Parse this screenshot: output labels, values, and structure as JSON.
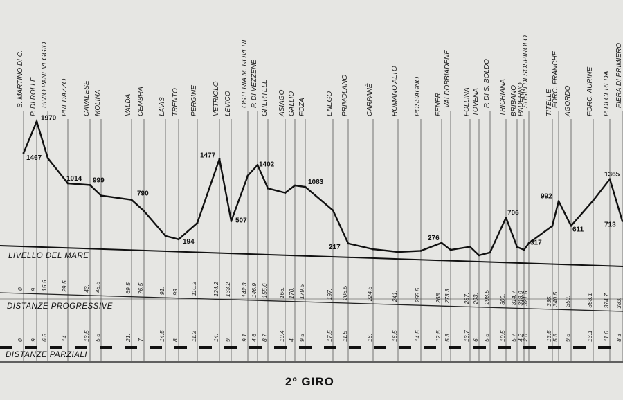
{
  "chart_data": {
    "type": "line",
    "title": "2º GIRO",
    "ylim": [
      0,
      2100
    ],
    "row_labels": {
      "sea_level": "LIVELLO DEL MARE",
      "progressive": "DISTANZE PROGRESSIVE",
      "partial": "DISTANZE PARZIALI"
    },
    "locations": [
      {
        "name": "S. MARTINO DI C.",
        "prog": "0",
        "part": "0"
      },
      {
        "name": "P. DI ROLLE",
        "prog": "9",
        "part": "9"
      },
      {
        "name": "BIVIO PANEVEGGIO",
        "prog": "15.5",
        "part": "6.5"
      },
      {
        "name": "PREDAZZO",
        "prog": "29.5",
        "part": "14."
      },
      {
        "name": "CAVALESE",
        "prog": "43.",
        "part": "13.5"
      },
      {
        "name": "MOLINA",
        "prog": "48.5",
        "part": "5.5"
      },
      {
        "name": "VALDA",
        "prog": "69.5",
        "part": "21."
      },
      {
        "name": "CEMBRA",
        "prog": "76.5",
        "part": "7."
      },
      {
        "name": "LAVIS",
        "prog": "91.",
        "part": "14.5"
      },
      {
        "name": "TRENTO",
        "prog": "99.",
        "part": "8."
      },
      {
        "name": "PERGINE",
        "prog": "110.2",
        "part": "11.2"
      },
      {
        "name": "VETRIOLO",
        "prog": "124.2",
        "part": "14."
      },
      {
        "name": "LEVICO",
        "prog": "133.2",
        "part": "9."
      },
      {
        "name": "OSTERIA M. ROVERE",
        "prog": "142.3",
        "part": "9.1"
      },
      {
        "name": "P. DI VEZZENE",
        "prog": "146.9",
        "part": "4.6"
      },
      {
        "name": "GHERTELE",
        "prog": "155.6",
        "part": "8.7"
      },
      {
        "name": "ASIAGO",
        "prog": "166.",
        "part": "10.4"
      },
      {
        "name": "GALLIO",
        "prog": "170.",
        "part": "4."
      },
      {
        "name": "FOZA",
        "prog": "179.5",
        "part": "9.5"
      },
      {
        "name": "ENEGO",
        "prog": "197.",
        "part": "17.5"
      },
      {
        "name": "PRIMOLANO",
        "prog": "208.5",
        "part": "11.5"
      },
      {
        "name": "CARPANÈ",
        "prog": "224.5",
        "part": "16."
      },
      {
        "name": "ROMANO ALTO",
        "prog": "241.",
        "part": "16.5"
      },
      {
        "name": "POSSAGNO",
        "prog": "255.5",
        "part": "14.5"
      },
      {
        "name": "FENER",
        "prog": "268.",
        "part": "12.5"
      },
      {
        "name": "VALDOBBIADENE",
        "prog": "273.3",
        "part": "5.3"
      },
      {
        "name": "FOLLINA",
        "prog": "287.",
        "part": "13.7"
      },
      {
        "name": "TOVENA",
        "prog": "293.",
        "part": "6."
      },
      {
        "name": "P. DI S. BOLDO",
        "prog": "298.5",
        "part": "5.5"
      },
      {
        "name": "TRICHIANA",
        "prog": "309.",
        "part": "10.5"
      },
      {
        "name": "BRIBANO",
        "prog": "314.7",
        "part": "5.7"
      },
      {
        "name": "PADERNO",
        "prog": "318.9",
        "part": "4.2"
      },
      {
        "name": "SUSIN DI SOSPIROLO",
        "prog": "321.5",
        "part": "2.6"
      },
      {
        "name": "TITELLE",
        "prog": "335.",
        "part": "13.5"
      },
      {
        "name": "FORC. FRANCHE",
        "prog": "340.5",
        "part": "5.5"
      },
      {
        "name": "AGORDO",
        "prog": "350.",
        "part": "9.5"
      },
      {
        "name": "FORC. AURINE",
        "prog": "363.1",
        "part": "13.1"
      },
      {
        "name": "P. DI CEREDA",
        "prog": "374.7",
        "part": "11.6"
      },
      {
        "name": "FIERA DI PRIMIERO",
        "prog": "383.",
        "part": "8.3"
      }
    ],
    "altitudes": [
      1467,
      1970,
      1400,
      1014,
      999,
      840,
      790,
      620,
      240,
      194,
      460,
      1477,
      507,
      1230,
      1402,
      1040,
      980,
      1100,
      1083,
      730,
      217,
      140,
      110,
      140,
      276,
      170,
      230,
      100,
      150,
      706,
      250,
      210,
      317,
      600,
      992,
      611,
      1020,
      1365,
      713
    ],
    "elevation_labels": [
      {
        "index": 0,
        "text": "1467"
      },
      {
        "index": 1,
        "text": "1970"
      },
      {
        "index": 3,
        "text": "1014"
      },
      {
        "index": 4,
        "text": "999"
      },
      {
        "index": 6,
        "text": "790"
      },
      {
        "index": 9,
        "text": "194"
      },
      {
        "index": 11,
        "text": "1477"
      },
      {
        "index": 12,
        "text": "507"
      },
      {
        "index": 14,
        "text": "1402"
      },
      {
        "index": 18,
        "text": "1083"
      },
      {
        "index": 20,
        "text": "217"
      },
      {
        "index": 24,
        "text": "276"
      },
      {
        "index": 29,
        "text": "706"
      },
      {
        "index": 32,
        "text": "317"
      },
      {
        "index": 34,
        "text": "992"
      },
      {
        "index": 35,
        "text": "611"
      },
      {
        "index": 37,
        "text": "1365"
      },
      {
        "index": 38,
        "text": "713"
      }
    ],
    "colors": {
      "background": "#e6e6e3",
      "line": "#111111"
    }
  }
}
